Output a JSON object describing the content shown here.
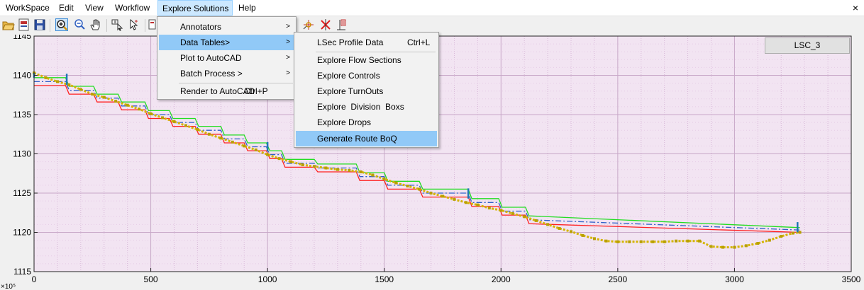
{
  "menubar": {
    "items": [
      "WorkSpace",
      "Edit",
      "View",
      "Workflow",
      "Explore Solutions",
      "Help"
    ],
    "close_glyph": "×"
  },
  "toolbar": {
    "icons": [
      "open-folder-icon",
      "new-file-icon",
      "save-icon",
      "zoom-in-icon",
      "zoom-out-icon",
      "pan-hand-icon",
      "data-cursor-icon",
      "select-cursor-icon",
      "insert-icon",
      "marker-add-icon",
      "marker-delete-icon",
      "marker-edit-icon"
    ]
  },
  "explore_menu": {
    "items": [
      {
        "label": "Annotators",
        "shortcut": "",
        "has_sub": true
      },
      {
        "label": "Data Tables>",
        "shortcut": "",
        "has_sub": true
      },
      {
        "label": "Plot to AutoCAD",
        "shortcut": "",
        "has_sub": true
      },
      {
        "label": "Batch Process >",
        "shortcut": "",
        "has_sub": true
      },
      {
        "label": "Render to AutoCAD",
        "shortcut": "Ctrl+P",
        "has_sub": false
      }
    ]
  },
  "data_tables_menu": {
    "items": [
      {
        "label": "LSec Profile Data",
        "shortcut": "Ctrl+L"
      },
      {
        "label": "Explore Flow Sections",
        "shortcut": ""
      },
      {
        "label": "Explore Controls",
        "shortcut": ""
      },
      {
        "label": "Explore TurnOuts",
        "shortcut": ""
      },
      {
        "label": "Explore  Division  Boxs",
        "shortcut": ""
      },
      {
        "label": "Explore Drops",
        "shortcut": ""
      },
      {
        "label": "Generate Route BoQ",
        "shortcut": ""
      }
    ]
  },
  "legend_button": {
    "label": "LSC_3"
  },
  "chart_data": {
    "type": "line",
    "xlim": [
      0,
      3500
    ],
    "ylim": [
      1115,
      1145
    ],
    "x_ticks": [
      "0",
      "500",
      "1000",
      "1500",
      "2000",
      "2500",
      "3000",
      "3500"
    ],
    "y_ticks": [
      "1115",
      "1120",
      "1125",
      "1130",
      "1135",
      "1140",
      "1145"
    ],
    "x_tick_values": [
      0,
      500,
      1000,
      1500,
      2000,
      2500,
      3000,
      3500
    ],
    "y_tick_values": [
      1115,
      1120,
      1125,
      1130,
      1135,
      1140,
      1145
    ],
    "y_exponent_label": "×10⁵",
    "grid": true,
    "colors": {
      "background": "#f2e4f2",
      "red": "#ff2020",
      "green": "#22dd22",
      "blue": "#3060c8",
      "ground": "#d4b400",
      "ground_marker": "#b8a000",
      "marker": "#1f77b4"
    },
    "series": [
      {
        "style": "stepped",
        "color": "red",
        "x": [
          0,
          15,
          135,
          150,
          255,
          270,
          360,
          375,
          475,
          490,
          580,
          595,
          690,
          705,
          800,
          815,
          900,
          915,
          995,
          1010,
          1060,
          1075,
          1200,
          1215,
          1380,
          1395,
          1500,
          1515,
          1650,
          1665,
          1860,
          1875,
          1990,
          2005,
          2105,
          2120,
          3280
        ],
        "y": [
          1138.7,
          1138.7,
          1138.7,
          1137.6,
          1137.6,
          1136.6,
          1136.6,
          1135.6,
          1135.6,
          1134.5,
          1134.5,
          1133.5,
          1133.5,
          1132.5,
          1132.5,
          1131.4,
          1131.4,
          1130.4,
          1130.4,
          1129.4,
          1129.4,
          1128.3,
          1128.3,
          1127.7,
          1127.7,
          1126.6,
          1126.6,
          1125.5,
          1125.5,
          1124.5,
          1124.5,
          1123.3,
          1123.3,
          1122.2,
          1122.2,
          1121.1,
          1120.0
        ]
      },
      {
        "style": "stepped",
        "color": "green",
        "x": [
          0,
          15,
          135,
          150,
          255,
          270,
          360,
          375,
          475,
          490,
          580,
          595,
          690,
          705,
          800,
          815,
          900,
          915,
          995,
          1010,
          1060,
          1075,
          1200,
          1215,
          1380,
          1395,
          1500,
          1515,
          1650,
          1665,
          1860,
          1875,
          1990,
          2005,
          2105,
          2120,
          3280
        ],
        "y": [
          1139.7,
          1139.7,
          1139.7,
          1138.6,
          1138.6,
          1137.6,
          1137.6,
          1136.6,
          1136.6,
          1135.5,
          1135.5,
          1134.5,
          1134.5,
          1133.5,
          1133.5,
          1132.4,
          1132.4,
          1131.4,
          1131.4,
          1130.4,
          1130.4,
          1129.3,
          1129.3,
          1128.7,
          1128.7,
          1127.6,
          1127.6,
          1126.5,
          1126.5,
          1125.5,
          1125.5,
          1124.3,
          1124.3,
          1123.2,
          1123.2,
          1122.1,
          1120.6
        ]
      },
      {
        "style": "dash-dot",
        "color": "blue",
        "x": [
          0,
          15,
          135,
          150,
          255,
          270,
          360,
          375,
          475,
          490,
          580,
          595,
          690,
          705,
          800,
          815,
          900,
          915,
          995,
          1010,
          1060,
          1075,
          1200,
          1215,
          1380,
          1395,
          1500,
          1515,
          1650,
          1665,
          1860,
          1875,
          1990,
          2005,
          2105,
          2120,
          3280
        ],
        "y": [
          1139.2,
          1139.2,
          1139.2,
          1138.1,
          1138.1,
          1137.1,
          1137.1,
          1136.1,
          1136.1,
          1135.0,
          1135.0,
          1134.0,
          1134.0,
          1133.0,
          1133.0,
          1131.9,
          1131.9,
          1130.9,
          1130.9,
          1129.9,
          1129.9,
          1128.8,
          1128.8,
          1128.2,
          1128.2,
          1127.1,
          1127.1,
          1126.0,
          1126.0,
          1125.0,
          1125.0,
          1123.8,
          1123.8,
          1122.7,
          1122.7,
          1121.6,
          1120.3
        ]
      },
      {
        "style": "marker-line",
        "color": "ground",
        "x": [
          0,
          50,
          100,
          150,
          200,
          250,
          300,
          350,
          400,
          450,
          500,
          550,
          600,
          650,
          700,
          750,
          800,
          850,
          900,
          950,
          1000,
          1050,
          1100,
          1150,
          1200,
          1250,
          1300,
          1350,
          1400,
          1450,
          1500,
          1550,
          1600,
          1650,
          1700,
          1750,
          1800,
          1850,
          1900,
          1950,
          2000,
          2050,
          2100,
          2150,
          2200,
          2250,
          2300,
          2350,
          2400,
          2450,
          2500,
          2550,
          2600,
          2650,
          2700,
          2750,
          2800,
          2850,
          2900,
          2950,
          3000,
          3050,
          3100,
          3150,
          3200,
          3250,
          3280
        ],
        "y": [
          1140.3,
          1139.7,
          1139.2,
          1138.8,
          1138.2,
          1137.6,
          1137.2,
          1136.7,
          1136.2,
          1135.7,
          1135.1,
          1134.6,
          1134.1,
          1133.6,
          1133.1,
          1132.5,
          1132.0,
          1131.5,
          1131.0,
          1130.5,
          1129.9,
          1129.4,
          1129.0,
          1128.6,
          1128.4,
          1128.2,
          1128.0,
          1127.9,
          1127.7,
          1127.3,
          1126.8,
          1126.3,
          1125.9,
          1125.5,
          1125.0,
          1124.6,
          1124.2,
          1123.8,
          1123.5,
          1123.1,
          1122.8,
          1122.4,
          1122.0,
          1121.5,
          1121.0,
          1120.5,
          1120.1,
          1119.6,
          1119.2,
          1118.9,
          1118.8,
          1118.8,
          1118.8,
          1118.8,
          1118.8,
          1118.9,
          1118.9,
          1118.9,
          1118.2,
          1118.1,
          1118.1,
          1118.3,
          1118.6,
          1119.0,
          1119.5,
          1119.9,
          1120.0
        ]
      }
    ],
    "markers": [
      {
        "x": 0,
        "y_top": 1140.3,
        "y_bottom": 1139.7
      },
      {
        "x": 140,
        "y_top": 1140.2,
        "y_bottom": 1138.8
      },
      {
        "x": 1000,
        "y_top": 1131.5,
        "y_bottom": 1130.3
      },
      {
        "x": 1860,
        "y_top": 1125.6,
        "y_bottom": 1124.3
      },
      {
        "x": 3270,
        "y_top": 1121.3,
        "y_bottom": 1120.0
      }
    ]
  }
}
